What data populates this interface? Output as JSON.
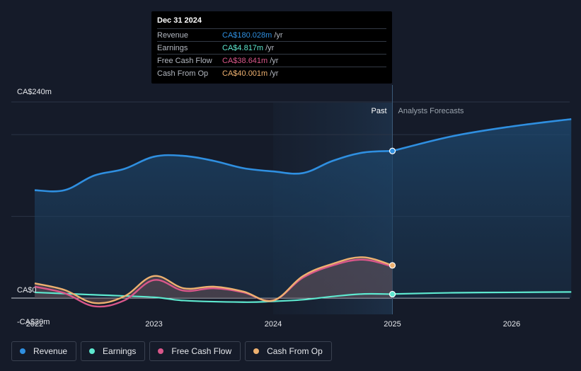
{
  "chart_data": {
    "type": "line",
    "title": "",
    "y_tick_labels": [
      "CA$240m",
      "CA$0",
      "-CA$20m"
    ],
    "x_tick_labels": [
      "2022",
      "2023",
      "2024",
      "2025",
      "2026"
    ],
    "x_ticks": [
      2022,
      2023,
      2024,
      2025,
      2026
    ],
    "xlim": [
      2021.8,
      2026.5
    ],
    "ylim": [
      -20,
      240
    ],
    "past_label": "Past",
    "forecast_label": "Analysts Forecasts",
    "divider_x": 2025.0,
    "forecast_start": 2024.0,
    "series": [
      {
        "name": "Revenue",
        "color": "#2f8fe0",
        "points": [
          [
            2022.0,
            132
          ],
          [
            2022.25,
            132
          ],
          [
            2022.5,
            150
          ],
          [
            2022.75,
            158
          ],
          [
            2023.0,
            173
          ],
          [
            2023.25,
            174
          ],
          [
            2023.5,
            168
          ],
          [
            2023.75,
            159
          ],
          [
            2024.0,
            155
          ],
          [
            2024.25,
            153
          ],
          [
            2024.5,
            168
          ],
          [
            2024.75,
            178
          ],
          [
            2025.0,
            180.028
          ]
        ],
        "forecast": [
          [
            2025.0,
            180
          ],
          [
            2025.5,
            198
          ],
          [
            2026.0,
            210
          ],
          [
            2026.5,
            219
          ]
        ]
      },
      {
        "name": "Earnings",
        "color": "#5ee8cf",
        "points": [
          [
            2022.0,
            7
          ],
          [
            2022.5,
            4
          ],
          [
            2023.0,
            1
          ],
          [
            2023.25,
            -3
          ],
          [
            2023.75,
            -5
          ],
          [
            2024.0,
            -4
          ],
          [
            2024.25,
            -2
          ],
          [
            2024.5,
            2
          ],
          [
            2024.75,
            5
          ],
          [
            2025.0,
            4.817
          ]
        ],
        "forecast": [
          [
            2025.0,
            5
          ],
          [
            2025.5,
            6.5
          ],
          [
            2026.0,
            7
          ],
          [
            2026.5,
            7.5
          ]
        ]
      },
      {
        "name": "Free Cash Flow",
        "color": "#d9578a",
        "points": [
          [
            2022.0,
            14
          ],
          [
            2022.25,
            6
          ],
          [
            2022.5,
            -10
          ],
          [
            2022.75,
            -3
          ],
          [
            2023.0,
            22
          ],
          [
            2023.25,
            9
          ],
          [
            2023.5,
            12
          ],
          [
            2023.75,
            7
          ],
          [
            2024.0,
            -3
          ],
          [
            2024.25,
            25
          ],
          [
            2024.5,
            40
          ],
          [
            2024.75,
            47
          ],
          [
            2025.0,
            38.641
          ]
        ]
      },
      {
        "name": "Cash From Op",
        "color": "#eeb170",
        "points": [
          [
            2022.0,
            18
          ],
          [
            2022.25,
            10
          ],
          [
            2022.5,
            -6
          ],
          [
            2022.75,
            2
          ],
          [
            2023.0,
            27
          ],
          [
            2023.25,
            12
          ],
          [
            2023.5,
            14
          ],
          [
            2023.75,
            8
          ],
          [
            2024.0,
            -3
          ],
          [
            2024.25,
            27
          ],
          [
            2024.5,
            42
          ],
          [
            2024.75,
            50
          ],
          [
            2025.0,
            40.001
          ]
        ]
      }
    ]
  },
  "tooltip": {
    "date": "Dec 31 2024",
    "rows": [
      {
        "label": "Revenue",
        "value": "CA$180.028m",
        "unit": "/yr",
        "color": "#2f8fe0"
      },
      {
        "label": "Earnings",
        "value": "CA$4.817m",
        "unit": "/yr",
        "color": "#5ee8cf"
      },
      {
        "label": "Free Cash Flow",
        "value": "CA$38.641m",
        "unit": "/yr",
        "color": "#d9578a"
      },
      {
        "label": "Cash From Op",
        "value": "CA$40.001m",
        "unit": "/yr",
        "color": "#eeb170"
      }
    ]
  },
  "legend": [
    {
      "label": "Revenue",
      "color": "#2f8fe0"
    },
    {
      "label": "Earnings",
      "color": "#5ee8cf"
    },
    {
      "label": "Free Cash Flow",
      "color": "#d9578a"
    },
    {
      "label": "Cash From Op",
      "color": "#eeb170"
    }
  ]
}
